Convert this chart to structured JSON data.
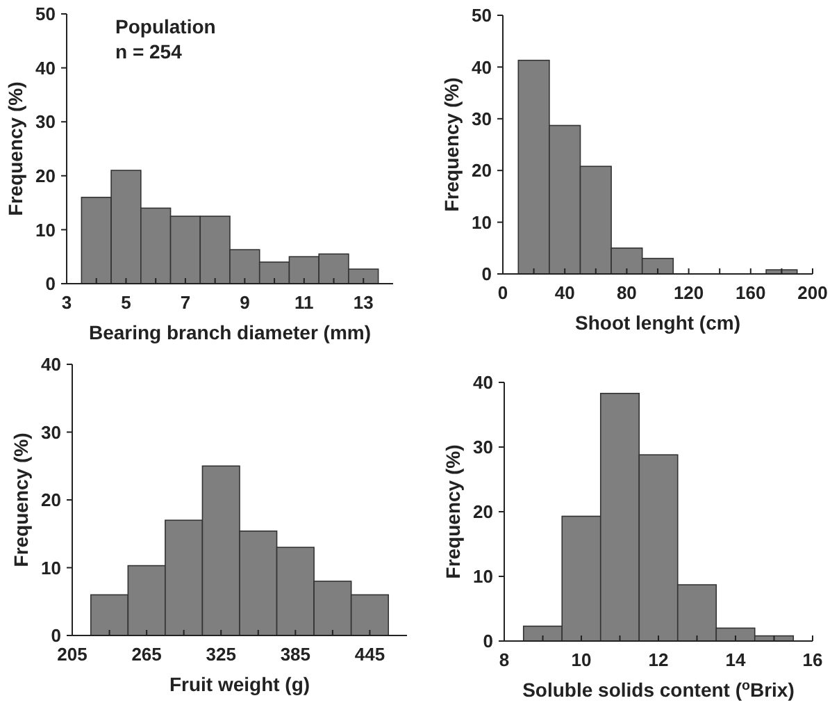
{
  "chart_data": [
    {
      "type": "histogram",
      "xlabel": "Bearing branch diameter (mm)",
      "ylabel": "Frequency (%)",
      "annotations": [
        "Population",
        "n = 254"
      ],
      "color": "#7f7f7f",
      "bins": [
        3.5,
        4.5,
        5.5,
        6.5,
        7.5,
        8.5,
        9.5,
        10.5,
        11.5,
        12.5,
        13.5
      ],
      "values": [
        16,
        21,
        14,
        12.5,
        12.5,
        6.3,
        4,
        5,
        5.5,
        2.7
      ],
      "xlim": [
        3,
        14
      ],
      "xticks": [
        3,
        {
          "value": 4,
          "label": null
        },
        5,
        {
          "value": 6,
          "label": null
        },
        7,
        {
          "value": 8,
          "label": null
        },
        9,
        {
          "value": 10,
          "label": null
        },
        11,
        {
          "value": 12,
          "label": null
        },
        13
      ],
      "ylim": [
        0,
        50
      ],
      "yticks": [
        0,
        10,
        20,
        30,
        40,
        50
      ]
    },
    {
      "type": "histogram",
      "xlabel": "Shoot lenght (cm)",
      "ylabel": "Frequency (%)",
      "color": "#7f7f7f",
      "bins": [
        10,
        30,
        50,
        70,
        90,
        110,
        130,
        150,
        170,
        190
      ],
      "values": [
        41.3,
        28.7,
        20.8,
        5,
        3,
        0,
        0,
        0,
        0.8
      ],
      "xlim": [
        0,
        200
      ],
      "xticks": [
        0,
        {
          "value": 20,
          "label": null
        },
        40,
        {
          "value": 60,
          "label": null
        },
        80,
        {
          "value": 100,
          "label": null
        },
        120,
        {
          "value": 140,
          "label": null
        },
        160,
        {
          "value": 180,
          "label": null
        },
        200
      ],
      "ylim": [
        0,
        50
      ],
      "yticks": [
        0,
        10,
        20,
        30,
        40,
        50
      ]
    },
    {
      "type": "histogram",
      "xlabel": "Fruit weight (g)",
      "ylabel": "Frequency (%)",
      "color": "#7f7f7f",
      "bins": [
        220,
        250,
        280,
        310,
        340,
        370,
        400,
        430,
        460
      ],
      "values": [
        6,
        10.3,
        17,
        25,
        15.4,
        13,
        8,
        6
      ],
      "xlim": [
        205,
        475
      ],
      "xticks": [
        205,
        {
          "value": 235,
          "label": null
        },
        265,
        {
          "value": 295,
          "label": null
        },
        325,
        {
          "value": 355,
          "label": null
        },
        385,
        {
          "value": 415,
          "label": null
        },
        445
      ],
      "ylim": [
        0,
        40
      ],
      "yticks": [
        0,
        10,
        20,
        30,
        40
      ]
    },
    {
      "type": "histogram",
      "xlabel": "Soluble solids content ($^{o}$Brix)",
      "ylabel": "Frequency (%)",
      "color": "#7f7f7f",
      "bins": [
        8.5,
        9.5,
        10.5,
        11.5,
        12.5,
        13.5,
        14.5,
        15.5
      ],
      "values": [
        2.3,
        19.3,
        38.3,
        28.8,
        8.7,
        2,
        0.8
      ],
      "xlim": [
        8,
        16
      ],
      "xticks": [
        8,
        {
          "value": 9,
          "label": null
        },
        10,
        {
          "value": 11,
          "label": null
        },
        12,
        {
          "value": 13,
          "label": null
        },
        14,
        {
          "value": 15,
          "label": null
        },
        16
      ],
      "ylim": [
        0,
        40
      ],
      "yticks": [
        0,
        10,
        20,
        30,
        40
      ]
    }
  ]
}
